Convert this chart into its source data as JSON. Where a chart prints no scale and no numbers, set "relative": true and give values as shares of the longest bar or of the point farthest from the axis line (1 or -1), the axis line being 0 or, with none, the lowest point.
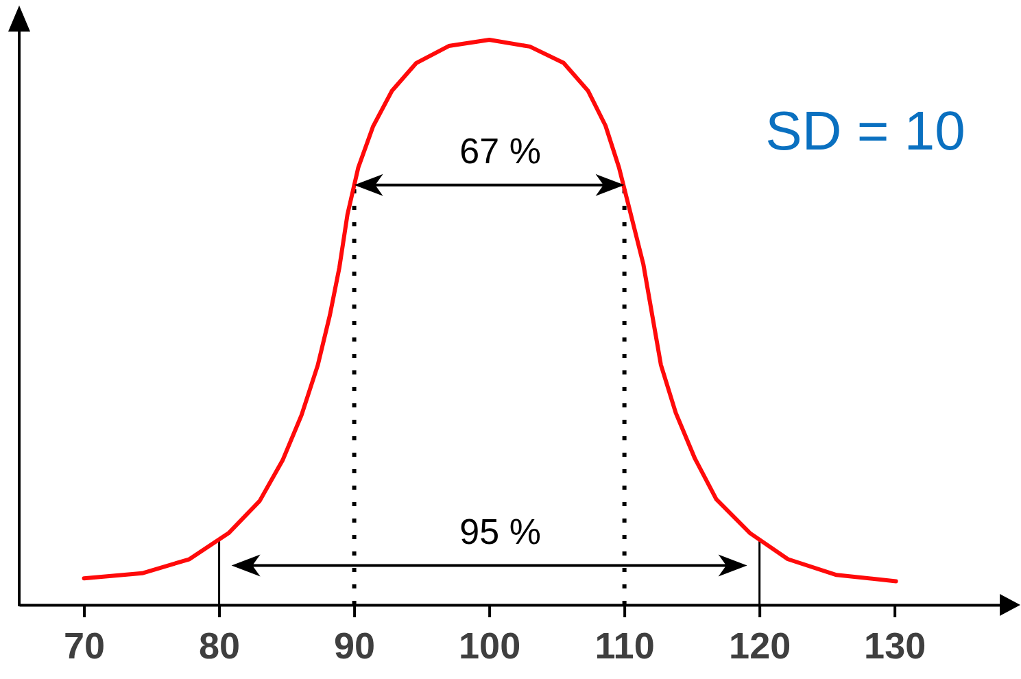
{
  "chart_data": {
    "type": "line",
    "relative": true,
    "color": "#ff0a0a",
    "x": [
      70,
      74.3,
      77.8,
      80.7,
      83.0,
      84.7,
      86.1,
      87.3,
      88.2,
      88.9,
      89.5,
      90.3,
      91.4,
      92.8,
      94.6,
      97.0,
      100,
      103.0,
      105.5,
      107.3,
      108.6,
      109.6,
      110.4,
      111.4,
      112.7,
      113.8,
      115.2,
      116.8,
      119.3,
      122.1,
      125.7,
      130.1
    ],
    "values": [
      0.047,
      0.056,
      0.081,
      0.127,
      0.184,
      0.256,
      0.336,
      0.424,
      0.513,
      0.597,
      0.691,
      0.774,
      0.847,
      0.91,
      0.959,
      0.989,
      1,
      0.988,
      0.959,
      0.91,
      0.848,
      0.774,
      0.698,
      0.603,
      0.425,
      0.34,
      0.26,
      0.187,
      0.127,
      0.081,
      0.053,
      0.042
    ],
    "xlim": [
      65.2,
      138.9
    ],
    "xticks": [
      70,
      80,
      90,
      100,
      110,
      120,
      130
    ],
    "marker": "none",
    "line_style": "solid",
    "ref_lines": [
      {
        "axis": "x",
        "value": 90,
        "line_style": "dotted"
      },
      {
        "axis": "x",
        "value": 110,
        "line_style": "dotted"
      },
      {
        "axis": "x",
        "value": 80,
        "line_style": "solid"
      },
      {
        "axis": "x",
        "value": 120,
        "line_style": "solid"
      }
    ],
    "annotations": [
      "67 %",
      "95 %",
      "SD = 10"
    ]
  }
}
